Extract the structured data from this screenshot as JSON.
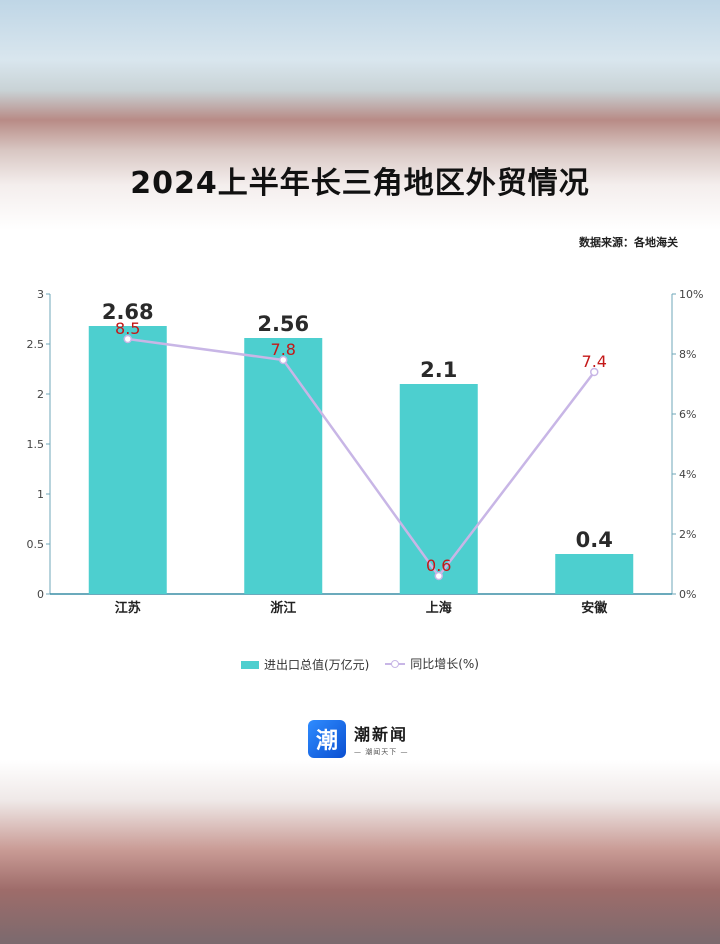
{
  "title": "2024上半年长三角地区外贸情况",
  "source": "数据来源：各地海关",
  "logo": {
    "mark": "潮",
    "name": "潮新闻",
    "slogan": "— 潮闻天下 —"
  },
  "colors": {
    "bar": "#4dcfcf",
    "line": "#c8b6e6",
    "line_label": "#c41818",
    "bar_label": "#2a2a2a"
  },
  "chart_data": {
    "type": "bar",
    "categories": [
      "江苏",
      "浙江",
      "上海",
      "安徽"
    ],
    "series": [
      {
        "name": "进出口总值(万亿元)",
        "type": "bar",
        "axis": "left",
        "values": [
          2.68,
          2.56,
          2.1,
          0.4
        ]
      },
      {
        "name": "同比增长(%)",
        "type": "line",
        "axis": "right",
        "values": [
          8.5,
          7.8,
          0.6,
          7.4
        ]
      }
    ],
    "left_axis": {
      "min": 0,
      "max": 3,
      "ticks": [
        "0",
        "0.5",
        "1",
        "1.5",
        "2",
        "2.5",
        "3"
      ]
    },
    "right_axis": {
      "min": 0,
      "max": 10,
      "ticks": [
        "0%",
        "2%",
        "4%",
        "6%",
        "8%",
        "10%"
      ]
    },
    "legend_position": "bottom"
  }
}
